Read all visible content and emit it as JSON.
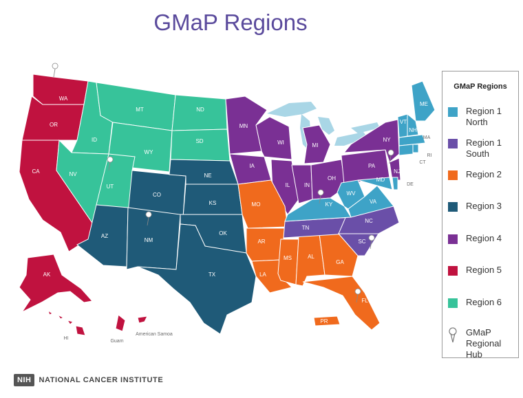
{
  "title": "GMaP Regions",
  "colors": {
    "region1north": "#3ea3c7",
    "region1south": "#6a4fa8",
    "region2": "#f06a1d",
    "region3": "#1f5a78",
    "region4": "#7a3094",
    "region5": "#c0123f",
    "region6": "#37c39a",
    "water": "#a9d6e6"
  },
  "legend": {
    "title": "GMaP Regions",
    "items": [
      {
        "label": "Region 1 North",
        "color": "#3ea3c7"
      },
      {
        "label": "Region 1 South",
        "color": "#6a4fa8"
      },
      {
        "label": "Region 2",
        "color": "#f06a1d"
      },
      {
        "label": "Region 3",
        "color": "#1f5a78"
      },
      {
        "label": "Region 4",
        "color": "#7a3094"
      },
      {
        "label": "Region 5",
        "color": "#c0123f"
      },
      {
        "label": "Region 6",
        "color": "#37c39a"
      }
    ],
    "hub_label": "GMaP Regional Hub",
    "hub_icon": "map-pin-icon"
  },
  "states": {
    "WA": "WA",
    "OR": "OR",
    "CA": "CA",
    "AK": "AK",
    "HI": "HI",
    "MT": "MT",
    "ID": "ID",
    "WY": "WY",
    "NV": "NV",
    "UT": "UT",
    "ND": "ND",
    "SD": "SD",
    "CO": "CO",
    "NE": "NE",
    "KS": "KS",
    "AZ": "AZ",
    "NM": "NM",
    "OK": "OK",
    "TX": "TX",
    "MN": "MN",
    "WI": "WI",
    "MI": "MI",
    "IA": "IA",
    "IL": "IL",
    "IN": "IN",
    "OH": "OH",
    "PA": "PA",
    "NY": "NY",
    "NJ": "NJ",
    "MO": "MO",
    "AR": "AR",
    "LA": "LA",
    "MS": "MS",
    "AL": "AL",
    "GA": "GA",
    "FL": "FL",
    "TN": "TN",
    "NC": "NC",
    "SC": "SC",
    "KY": "KY",
    "WV": "WV",
    "VA": "VA",
    "MD": "MD",
    "DE": "DE",
    "ME": "ME",
    "VT": "VT",
    "NH": "NH",
    "MA": "MA",
    "RI": "RI",
    "CT": "CT",
    "Guam": "Guam",
    "AmericanSamoa": "American Samoa",
    "PR": "PR"
  },
  "footer": {
    "logo": "NIH",
    "org": "NATIONAL CANCER INSTITUTE"
  }
}
